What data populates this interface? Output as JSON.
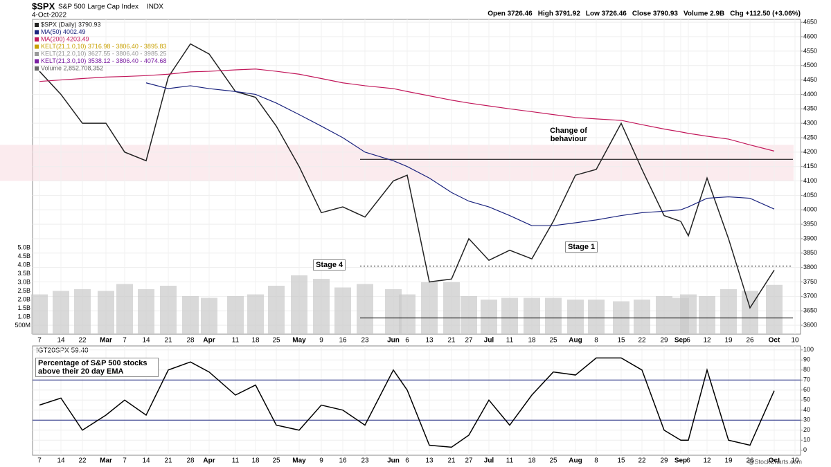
{
  "chart_data": [
    {
      "type": "line",
      "title": "$SPX",
      "subtitle": "S&P 500 Large Cap Index",
      "exchange": "INDX",
      "date": "4-Oct-2022",
      "quote": [
        "Open 3726.46",
        "High 3791.92",
        "Low 3726.46",
        "Close 3790.93",
        "Volume 2.9B",
        "Chg +112.50 (+3.06%)"
      ],
      "credit": "@StockCharts.com",
      "legend_extra": [
        "KELT(21,1.0,10) 3716.98 - 3806.40 - 3895.83",
        "KELT(21,2.0,10) 3627.55 - 3806.40 - 3985.25",
        "KELT(21,3.0,10) 3538.12 - 3806.40 - 4074.68"
      ],
      "categories": [
        "7",
        "14",
        "22",
        "Mar",
        "7",
        "14",
        "21",
        "28",
        "Apr",
        "11",
        "18",
        "25",
        "May",
        "9",
        "16",
        "23",
        "Jun",
        "6",
        "13",
        "21",
        "27",
        "Jul",
        "11",
        "18",
        "25",
        "Aug",
        "8",
        "15",
        "22",
        "29",
        "Sep",
        "6",
        "12",
        "19",
        "26",
        "Oct",
        "10"
      ],
      "series": [
        {
          "name": "$SPX (Daily) 3790.93",
          "color": "#222222",
          "values": [
            4480,
            4400,
            4300,
            4300,
            4200,
            4170,
            4460,
            4575,
            4540,
            4410,
            4390,
            4290,
            4150,
            3990,
            4010,
            3975,
            4100,
            4120,
            3750,
            3760,
            3900,
            3825,
            3860,
            3830,
            3960,
            4120,
            4140,
            4300,
            4140,
            3980,
            3960,
            3910,
            4110,
            3900,
            3660,
            3790.93,
            null
          ]
        },
        {
          "name": "MA(50) 4002.49",
          "color": "#1a237e",
          "values": [
            null,
            null,
            null,
            null,
            null,
            4440,
            4420,
            4430,
            4420,
            4410,
            4400,
            4370,
            4330,
            4290,
            4250,
            4200,
            4170,
            4150,
            4110,
            4060,
            4030,
            4010,
            3980,
            3945,
            3945,
            3955,
            3965,
            3980,
            3990,
            3995,
            4000,
            4010,
            4040,
            4045,
            4040,
            4002.49,
            null
          ]
        },
        {
          "name": "MA(200) 4203.49",
          "color": "#c2185b",
          "values": [
            4445,
            4450,
            4455,
            4460,
            4462,
            4465,
            4470,
            4478,
            4480,
            4485,
            4488,
            4480,
            4470,
            4455,
            4440,
            4430,
            4420,
            4410,
            4395,
            4380,
            4370,
            4360,
            4350,
            4340,
            4330,
            4320,
            4315,
            4310,
            4295,
            4280,
            4270,
            4265,
            4255,
            4245,
            4225,
            4203.49,
            null
          ]
        }
      ],
      "volume": {
        "name": "Volume 2,852,708,352",
        "color": "#c9c9c9",
        "axis": "y2",
        "values": [
          2.3,
          2.5,
          2.6,
          2.5,
          2.9,
          2.6,
          2.8,
          2.2,
          2.1,
          2.2,
          2.3,
          2.8,
          3.4,
          3.2,
          2.7,
          2.9,
          2.6,
          2.3,
          3.0,
          3.0,
          2.2,
          2.0,
          2.1,
          2.1,
          2.1,
          2.0,
          2.0,
          1.9,
          2.0,
          2.2,
          2.1,
          2.3,
          2.2,
          2.6,
          2.5,
          2.85,
          null
        ]
      },
      "ylim": [
        3569,
        4660
      ],
      "yticks": [
        3600,
        3650,
        3700,
        3750,
        3800,
        3850,
        3900,
        3950,
        4000,
        4050,
        4100,
        4150,
        4200,
        4250,
        4300,
        4350,
        4400,
        4450,
        4500,
        4550,
        4600,
        4650
      ],
      "y2lim": [
        0,
        18.2
      ],
      "y2ticks": [
        {
          "value": 0.5,
          "label": "500M"
        },
        {
          "value": 1,
          "label": "1.0B"
        },
        {
          "value": 1.5,
          "label": "1.5B"
        },
        {
          "value": 2,
          "label": "2.0B"
        },
        {
          "value": 2.5,
          "label": "2.5B"
        },
        {
          "value": 3,
          "label": "3.0B"
        },
        {
          "value": 3.5,
          "label": "3.5B"
        },
        {
          "value": 4,
          "label": "4.0B"
        },
        {
          "value": 4.5,
          "label": "4.5B"
        },
        {
          "value": 5,
          "label": "5.0B"
        }
      ],
      "zone": [
        4100,
        4225
      ],
      "levels": [
        {
          "value": 4175,
          "style": "solid"
        },
        {
          "value": 3805,
          "style": "dotted"
        },
        {
          "value": 3625,
          "style": "solid"
        }
      ],
      "annotations": [
        "Change of behaviour",
        "Stage 1",
        "Stage 4"
      ]
    },
    {
      "type": "line",
      "title": "!GT20SPX 59.40",
      "annotation": "Percentage of S&P 500 stocks above their 20 day EMA",
      "categories": [
        "7",
        "14",
        "22",
        "Mar",
        "7",
        "14",
        "21",
        "28",
        "Apr",
        "11",
        "18",
        "25",
        "May",
        "9",
        "16",
        "23",
        "Jun",
        "6",
        "13",
        "21",
        "27",
        "Jul",
        "11",
        "18",
        "25",
        "Aug",
        "8",
        "15",
        "22",
        "29",
        "Sep",
        "6",
        "12",
        "19",
        "26",
        "Oct",
        "10"
      ],
      "series": [
        {
          "name": "!GT20SPX",
          "color": "#000000",
          "values": [
            45,
            52,
            20,
            35,
            50,
            35,
            80,
            88,
            78,
            55,
            65,
            25,
            20,
            45,
            40,
            25,
            80,
            60,
            5,
            3,
            15,
            50,
            25,
            55,
            78,
            75,
            92,
            92,
            80,
            20,
            10,
            10,
            80,
            10,
            5,
            59.4,
            null
          ]
        }
      ],
      "ylim": [
        -5,
        104
      ],
      "yticks": [
        0,
        10,
        20,
        30,
        40,
        50,
        60,
        70,
        80,
        90,
        100
      ],
      "levels": [
        {
          "value": 70,
          "style": "solid"
        },
        {
          "value": 30,
          "style": "solid"
        }
      ]
    }
  ]
}
